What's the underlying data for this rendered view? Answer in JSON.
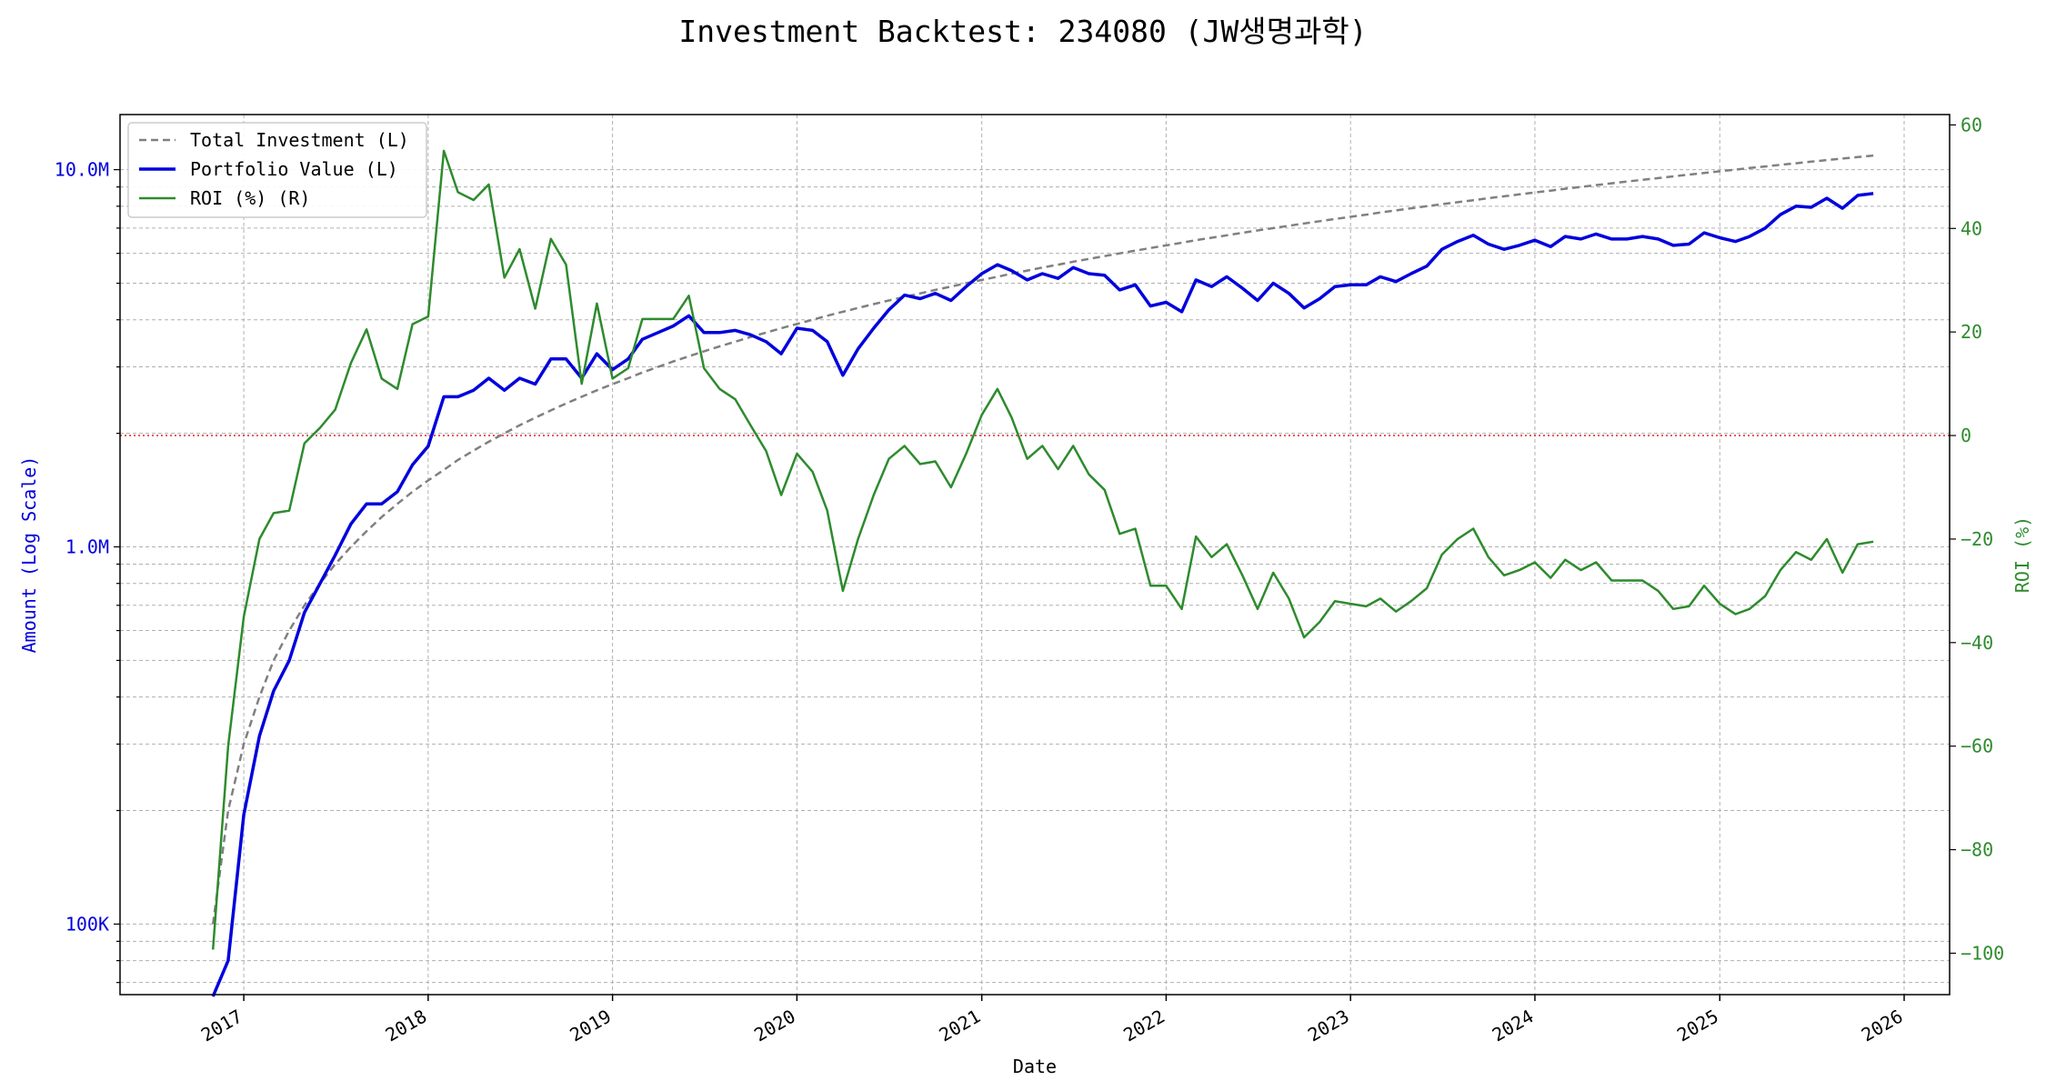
{
  "chart_data": {
    "type": "line",
    "title": "Investment Backtest: 234080 (JW생명과학)",
    "xlabel": "Date",
    "ylabel_left": "Amount (Log Scale)",
    "ylabel_right": "ROI (%)",
    "left_scale": "log",
    "left_ylim": [
      65000,
      14000000
    ],
    "right_ylim": [
      -108,
      62
    ],
    "xlim": [
      "2016-05-01",
      "2026-04-01"
    ],
    "grid": true,
    "legend_position": "upper-left",
    "x_ticks": [
      {
        "date": "2017-01-01",
        "label": "2017"
      },
      {
        "date": "2018-01-01",
        "label": "2018"
      },
      {
        "date": "2019-01-01",
        "label": "2019"
      },
      {
        "date": "2020-01-01",
        "label": "2020"
      },
      {
        "date": "2021-01-01",
        "label": "2021"
      },
      {
        "date": "2022-01-01",
        "label": "2022"
      },
      {
        "date": "2023-01-01",
        "label": "2023"
      },
      {
        "date": "2024-01-01",
        "label": "2024"
      },
      {
        "date": "2025-01-01",
        "label": "2025"
      },
      {
        "date": "2026-01-01",
        "label": "2026"
      }
    ],
    "left_ticks": [
      {
        "value": 100000,
        "label": "100K"
      },
      {
        "value": 1000000,
        "label": "1.0M"
      },
      {
        "value": 10000000,
        "label": "10.0M"
      }
    ],
    "right_ticks": [
      {
        "value": 60,
        "label": "60"
      },
      {
        "value": 40,
        "label": "40"
      },
      {
        "value": 20,
        "label": "20"
      },
      {
        "value": 0,
        "label": "0"
      },
      {
        "value": -20,
        "label": "−20"
      },
      {
        "value": -40,
        "label": "−40"
      },
      {
        "value": -60,
        "label": "−60"
      },
      {
        "value": -80,
        "label": "−80"
      },
      {
        "value": -100,
        "label": "−100"
      }
    ],
    "zero_line": {
      "axis": "right",
      "value": 0,
      "color": "#d62728"
    },
    "series": [
      {
        "name": "Total Investment (L)",
        "axis": "left",
        "color": "#808080",
        "style": "dashed",
        "monthly_step": 100000,
        "first_date": "2016-11-01",
        "last_date": "2025-11-01"
      },
      {
        "name": "Portfolio Value (L)",
        "axis": "left",
        "color": "#0000dd",
        "style": "solid",
        "start_date": "2016-11-01",
        "values": [
          7000,
          80000,
          195000,
          315000,
          415000,
          500000,
          670000,
          800000,
          950000,
          1150000,
          1300000,
          1300000,
          1400000,
          1650000,
          1850000,
          2500000,
          2500000,
          2600000,
          2800000,
          2600000,
          2800000,
          2700000,
          3150000,
          3150000,
          2800000,
          3250000,
          2950000,
          3150000,
          3550000,
          3700000,
          3850000,
          4100000,
          3700000,
          3700000,
          3750000,
          3650000,
          3500000,
          3250000,
          3800000,
          3750000,
          3500000,
          2850000,
          3350000,
          3800000,
          4250000,
          4650000,
          4550000,
          4700000,
          4500000,
          4900000,
          5300000,
          5600000,
          5400000,
          5100000,
          5300000,
          5150000,
          5500000,
          5300000,
          5250000,
          4800000,
          4950000,
          4350000,
          4450000,
          4200000,
          5100000,
          4900000,
          5200000,
          4850000,
          4500000,
          5000000,
          4700000,
          4300000,
          4550000,
          4900000,
          4950000,
          4950000,
          5200000,
          5050000,
          5300000,
          5550000,
          6150000,
          6450000,
          6700000,
          6350000,
          6150000,
          6300000,
          6500000,
          6250000,
          6650000,
          6550000,
          6750000,
          6550000,
          6550000,
          6650000,
          6550000,
          6300000,
          6350000,
          6800000,
          6600000,
          6450000,
          6650000,
          7000000,
          7600000,
          8000000,
          7950000,
          8400000,
          7900000,
          8550000,
          8650000
        ]
      },
      {
        "name": "ROI (%) (R)",
        "axis": "right",
        "color": "#2e8b2e",
        "style": "solid",
        "start_date": "2016-11-01",
        "values": [
          -99.3,
          -60,
          -35,
          -20,
          -15,
          -14.5,
          -1.5,
          1.5,
          5,
          14,
          20.5,
          11,
          9,
          21.5,
          23,
          55,
          47,
          45.5,
          48.5,
          30.5,
          36,
          24.5,
          38,
          33,
          10,
          25.5,
          11,
          13,
          22.5,
          22.5,
          22.5,
          27,
          13,
          9,
          7,
          2,
          -3,
          -11.5,
          -3.5,
          -7,
          -14.5,
          -30,
          -20,
          -11.5,
          -4.5,
          -2,
          -5.5,
          -5,
          -10,
          -3.5,
          4,
          9,
          3.5,
          -4.5,
          -2,
          -6.5,
          -2,
          -7.5,
          -10.5,
          -19,
          -18,
          -29,
          -29,
          -33.5,
          -19.5,
          -23.5,
          -21,
          -27,
          -33.5,
          -26.5,
          -31.5,
          -39,
          -36,
          -32,
          -32.5,
          -33,
          -31.5,
          -34,
          -32,
          -29.5,
          -23,
          -20,
          -18,
          -23.5,
          -27,
          -26,
          -24.5,
          -27.5,
          -24,
          -26,
          -24.5,
          -28,
          -28,
          -28,
          -30,
          -33.5,
          -33,
          -29,
          -32.5,
          -34.5,
          -33.5,
          -31,
          -26,
          -22.5,
          -24,
          -20,
          -26.5,
          -21,
          -20.5
        ]
      }
    ]
  }
}
